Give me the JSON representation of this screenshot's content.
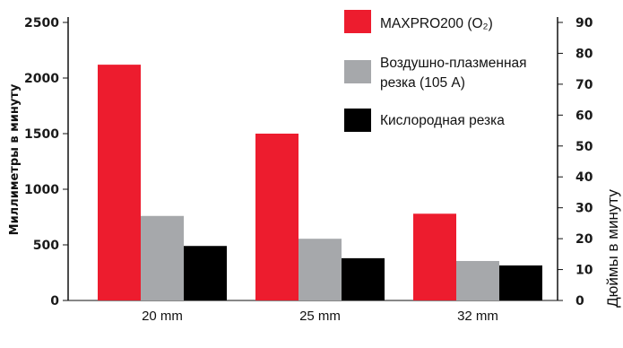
{
  "chart_data": {
    "type": "bar",
    "categories": [
      "20 mm",
      "25 mm",
      "32 mm"
    ],
    "series": [
      {
        "name": "MAXPRO200 (O₂)",
        "color": "#ed1c2e",
        "values": [
          2120,
          1500,
          780
        ]
      },
      {
        "name": "Воздушно-плазменная резка (105 A)",
        "legend_lines": [
          "Воздушно-плазменная",
          "резка (105 A)"
        ],
        "color": "#a6a8ab",
        "values": [
          760,
          555,
          355
        ]
      },
      {
        "name": "Кислородная резка",
        "color": "#000000",
        "values": [
          490,
          380,
          315
        ]
      }
    ],
    "ylabel": "Миллиметры в минуту",
    "ylim": [
      0,
      2500
    ],
    "yticks": [
      "0",
      "500",
      "1000",
      "1500",
      "2000",
      "2500"
    ],
    "ylabel_right": "Дюймы в минуту",
    "ylim_right": [
      0,
      90
    ],
    "yticks_right": [
      "0",
      "10",
      "20",
      "30",
      "40",
      "50",
      "60",
      "70",
      "80",
      "90"
    ],
    "grid": false,
    "legend": "top-right"
  }
}
